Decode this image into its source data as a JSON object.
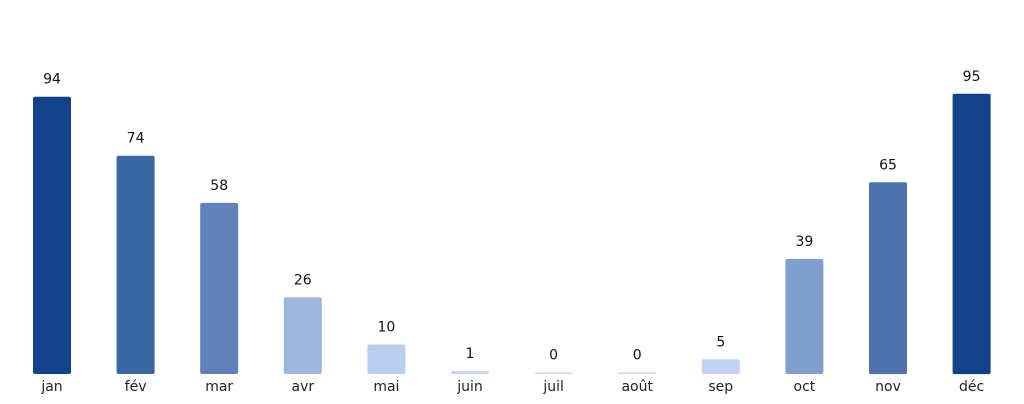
{
  "chart_data": {
    "type": "bar",
    "categories": [
      "jan",
      "fév",
      "mar",
      "avr",
      "mai",
      "juin",
      "juil",
      "août",
      "sep",
      "oct",
      "nov",
      "déc"
    ],
    "values": [
      94,
      74,
      58,
      26,
      10,
      1,
      0,
      0,
      5,
      39,
      65,
      95
    ],
    "value_labels": [
      "94",
      "74",
      "58",
      "26",
      "10",
      "1",
      "0",
      "0",
      "5",
      "39",
      "65",
      "95"
    ],
    "colors": [
      "#12438a",
      "#3a66a4",
      "#5e82b9",
      "#9fb6dd",
      "#bccdee",
      "#c2d3f1",
      "#c7d7f3",
      "#c7d7f3",
      "#c2d3f1",
      "#819fcd",
      "#4d73ad",
      "#12438a"
    ],
    "ylim": [
      0,
      100
    ],
    "grid": false,
    "legend": "none"
  }
}
